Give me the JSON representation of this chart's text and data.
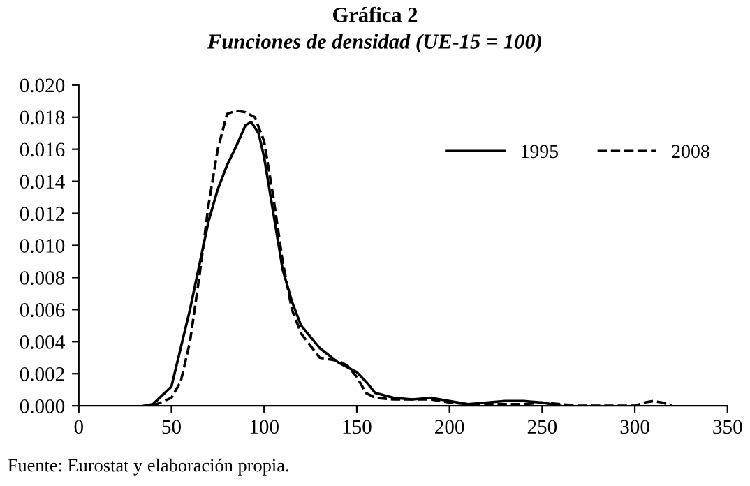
{
  "chart_data": {
    "type": "line",
    "title": "Gráfica 2",
    "subtitle": "Funciones de densidad (UE-15 = 100)",
    "annotations": [
      "Fuente: Eurostat y elaboración propia."
    ],
    "xlim": [
      0,
      350
    ],
    "xticks": [
      0,
      50,
      100,
      150,
      200,
      250,
      300,
      350
    ],
    "ylim": [
      0,
      0.02
    ],
    "yticks": [
      {
        "value": 0,
        "label": "0.000"
      },
      {
        "value": 0.002,
        "label": "0.002"
      },
      {
        "value": 0.004,
        "label": "0.004"
      },
      {
        "value": 0.006,
        "label": "0.006"
      },
      {
        "value": 0.008,
        "label": "0.008"
      },
      {
        "value": 0.01,
        "label": "0.010"
      },
      {
        "value": 0.012,
        "label": "0.012"
      },
      {
        "value": 0.014,
        "label": "0.014"
      },
      {
        "value": 0.016,
        "label": "0.016"
      },
      {
        "value": 0.018,
        "label": "0.018"
      },
      {
        "value": 0.02,
        "label": "0.020"
      }
    ],
    "grid": false,
    "legend": "top right",
    "marker": "none",
    "series": [
      {
        "name": "1995",
        "color": "#000000",
        "line_style": "solid",
        "x": [
          35,
          40,
          50,
          60,
          70,
          75,
          80,
          85,
          90,
          93,
          97,
          100,
          105,
          110,
          115,
          120,
          130,
          140,
          150,
          155,
          160,
          170,
          180,
          190,
          200,
          210,
          220,
          230,
          240,
          250,
          255,
          260
        ],
        "values": [
          0,
          0.0001,
          0.0012,
          0.006,
          0.0115,
          0.0135,
          0.015,
          0.0162,
          0.0175,
          0.0177,
          0.017,
          0.0155,
          0.012,
          0.0085,
          0.0065,
          0.005,
          0.0036,
          0.0027,
          0.0021,
          0.0015,
          0.0008,
          0.0005,
          0.0004,
          0.0005,
          0.0003,
          0.0001,
          0.0002,
          0.0003,
          0.0003,
          0.0002,
          0.0001,
          0
        ]
      },
      {
        "name": "2008",
        "color": "#000000",
        "line_style": "dashed",
        "x": [
          40,
          50,
          55,
          60,
          65,
          70,
          75,
          80,
          85,
          90,
          95,
          100,
          105,
          110,
          115,
          120,
          130,
          140,
          145,
          150,
          155,
          160,
          170,
          180,
          190,
          200,
          210,
          220,
          240,
          250,
          260,
          270,
          300,
          305,
          310,
          315,
          320
        ],
        "values": [
          0,
          0.0005,
          0.0015,
          0.004,
          0.008,
          0.0125,
          0.016,
          0.0182,
          0.0184,
          0.0183,
          0.018,
          0.0165,
          0.013,
          0.009,
          0.006,
          0.0045,
          0.003,
          0.0028,
          0.0025,
          0.0018,
          0.0008,
          0.0005,
          0.0004,
          0.0004,
          0.0004,
          0.0002,
          0.0001,
          0.0001,
          0.0001,
          0.0002,
          0.0001,
          0,
          0,
          0.0002,
          0.0003,
          0.0002,
          0
        ]
      }
    ]
  }
}
